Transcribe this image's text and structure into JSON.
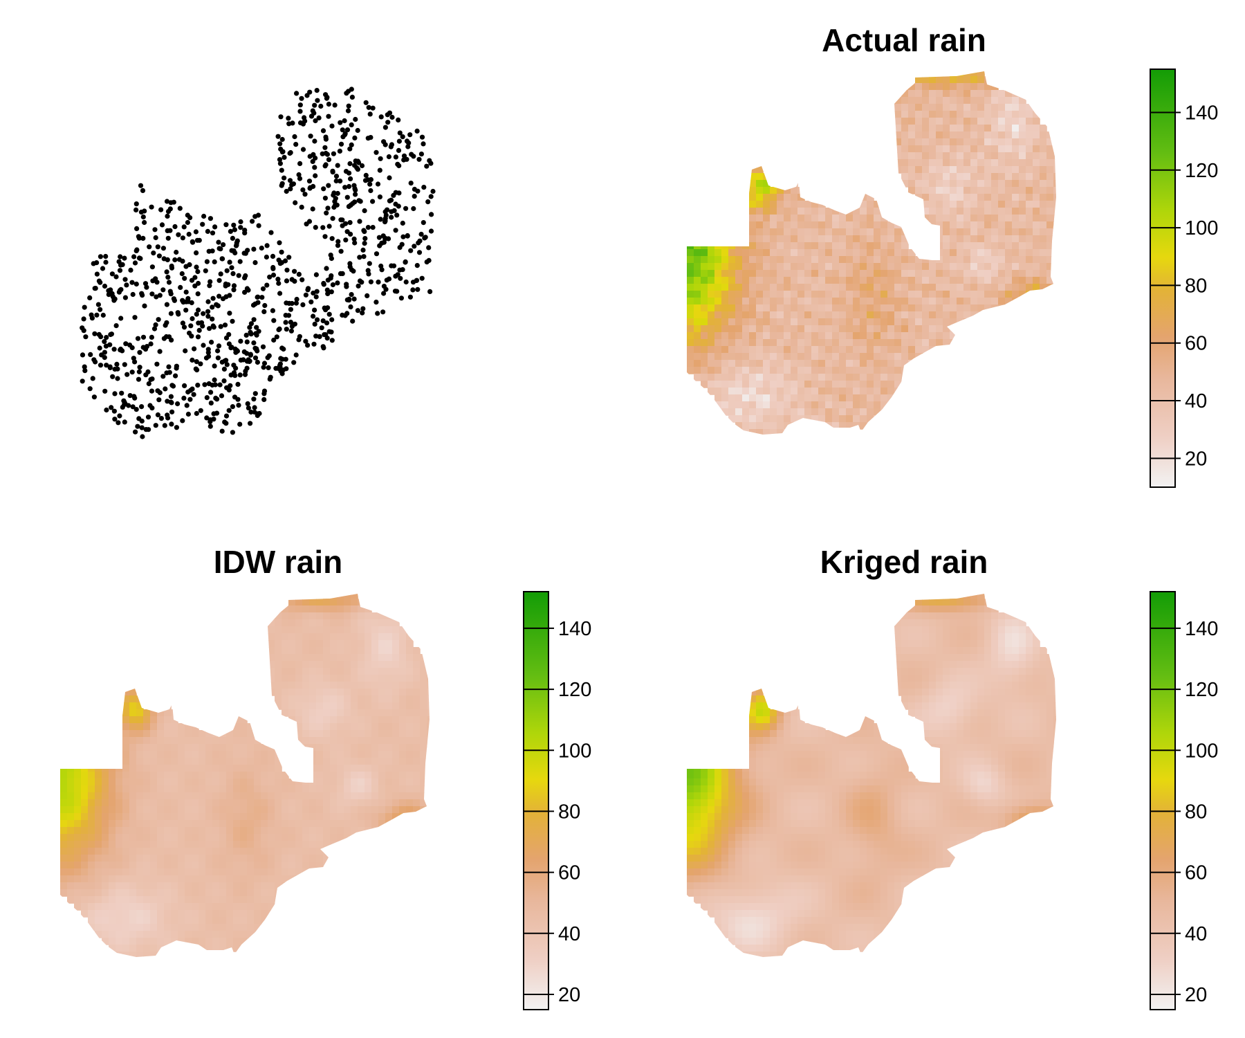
{
  "figure": {
    "panels": [
      {
        "id": "points",
        "title": "",
        "type": "scatter",
        "point_count": 1000
      },
      {
        "id": "actual",
        "title": "Actual rain",
        "type": "raster",
        "variant": "actual"
      },
      {
        "id": "idw",
        "title": "IDW rain",
        "type": "raster",
        "variant": "idw"
      },
      {
        "id": "kriged",
        "title": "Kriged rain",
        "type": "raster",
        "variant": "kriged"
      }
    ],
    "legend": {
      "ticks_top": [
        20,
        40,
        60,
        80,
        100,
        120,
        140
      ],
      "ticks_bottom": [
        20,
        40,
        60,
        80,
        100,
        120,
        140
      ],
      "range_top": [
        10,
        155
      ],
      "range_bottom": [
        15,
        152
      ],
      "colors": [
        {
          "at": 0.0,
          "color": "#f2f2f2"
        },
        {
          "at": 0.12,
          "color": "#efcfc4"
        },
        {
          "at": 0.26,
          "color": "#e8b79c"
        },
        {
          "at": 0.36,
          "color": "#e4a46e"
        },
        {
          "at": 0.47,
          "color": "#e3b238"
        },
        {
          "at": 0.55,
          "color": "#e6d80e"
        },
        {
          "at": 0.66,
          "color": "#b0d60a"
        },
        {
          "at": 0.8,
          "color": "#63bd12"
        },
        {
          "at": 1.0,
          "color": "#139c06"
        }
      ]
    }
  },
  "chart_data": {
    "type": "heatmap",
    "panels": [
      {
        "title": "",
        "type": "scatter",
        "description_values": "sample point locations"
      },
      {
        "title": "Actual rain",
        "legend_ticks": [
          20,
          40,
          60,
          80,
          100,
          120,
          140
        ],
        "value_range": [
          10,
          155
        ]
      },
      {
        "title": "IDW rain",
        "legend_ticks": [
          20,
          40,
          60,
          80,
          100,
          120,
          140
        ],
        "value_range": [
          15,
          152
        ]
      },
      {
        "title": "Kriged rain",
        "legend_ticks": [
          20,
          40,
          60,
          80,
          100,
          120,
          140
        ],
        "value_range": [
          15,
          152
        ]
      }
    ]
  }
}
